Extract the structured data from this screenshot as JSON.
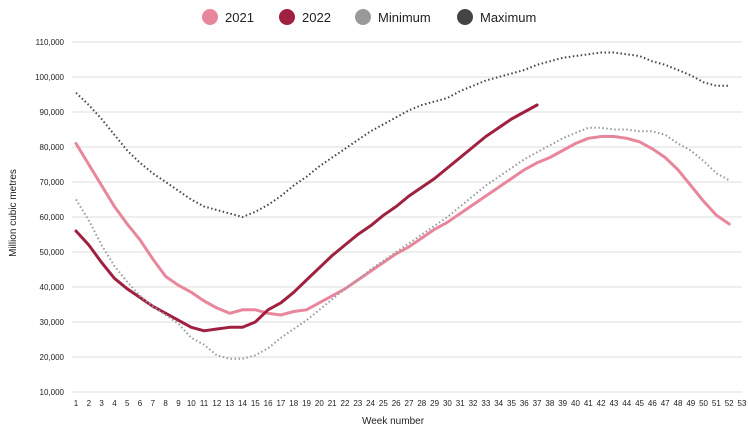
{
  "chart_data": {
    "type": "line",
    "xlabel": "Week number",
    "ylabel": "Million cubic metres",
    "ylim": [
      10000,
      110000
    ],
    "yticks": [
      10000,
      20000,
      30000,
      40000,
      50000,
      60000,
      70000,
      80000,
      90000,
      100000,
      110000
    ],
    "ytick_labels": [
      "10,000",
      "20,000",
      "30,000",
      "40,000",
      "50,000",
      "60,000",
      "70,000",
      "80,000",
      "90,000",
      "100,000",
      "110,000"
    ],
    "x": [
      1,
      2,
      3,
      4,
      5,
      6,
      7,
      8,
      9,
      10,
      11,
      12,
      13,
      14,
      15,
      16,
      17,
      18,
      19,
      20,
      21,
      22,
      23,
      24,
      25,
      26,
      27,
      28,
      29,
      30,
      31,
      32,
      33,
      34,
      35,
      36,
      37,
      38,
      39,
      40,
      41,
      42,
      43,
      44,
      45,
      46,
      47,
      48,
      49,
      50,
      51,
      52,
      53
    ],
    "grid": "horizontal",
    "legend_position": "top",
    "series": [
      {
        "name": "2021",
        "color": "#e8869c",
        "style": "solid",
        "values": [
          81000,
          75000,
          69000,
          63000,
          58000,
          53500,
          48000,
          43000,
          40500,
          38500,
          36000,
          34000,
          32500,
          33500,
          33500,
          32500,
          32000,
          33000,
          33500,
          35500,
          37500,
          39500,
          42000,
          44500,
          47000,
          49500,
          51500,
          54000,
          56500,
          58500,
          61000,
          63500,
          66000,
          68500,
          71000,
          73500,
          75500,
          77000,
          79000,
          81000,
          82500,
          83000,
          83000,
          82500,
          81500,
          79500,
          77000,
          73500,
          69000,
          64500,
          60500,
          58000,
          null
        ]
      },
      {
        "name": "2022",
        "color": "#a0203f",
        "style": "solid",
        "values": [
          56000,
          52000,
          47000,
          42500,
          39500,
          37000,
          34500,
          32500,
          30500,
          28500,
          27500,
          28000,
          28500,
          28500,
          30000,
          33500,
          35500,
          38500,
          42000,
          45500,
          49000,
          52000,
          55000,
          57500,
          60500,
          63000,
          66000,
          68500,
          71000,
          74000,
          77000,
          80000,
          83000,
          85500,
          88000,
          90000,
          92000,
          null,
          null,
          null,
          null,
          null,
          null,
          null,
          null,
          null,
          null,
          null,
          null,
          null,
          null,
          null,
          null
        ]
      },
      {
        "name": "Minimum",
        "color": "#999999",
        "style": "dotted",
        "values": [
          65000,
          59000,
          52000,
          46000,
          41500,
          37500,
          34500,
          32000,
          29500,
          25500,
          23500,
          20500,
          19500,
          19500,
          20500,
          22500,
          25500,
          28000,
          30500,
          33500,
          36500,
          39500,
          42000,
          45000,
          47500,
          50000,
          52500,
          55000,
          57500,
          60000,
          63000,
          66000,
          69000,
          71500,
          74000,
          76500,
          78500,
          80500,
          82500,
          84000,
          85500,
          85500,
          85000,
          85000,
          84500,
          84500,
          83500,
          81000,
          79000,
          76000,
          72500,
          70500,
          null
        ]
      },
      {
        "name": "Maximum",
        "color": "#444444",
        "style": "dotted",
        "values": [
          95500,
          92000,
          88000,
          83500,
          79000,
          75500,
          72500,
          70000,
          67500,
          65000,
          63000,
          62000,
          61000,
          60000,
          61500,
          63500,
          66000,
          69000,
          71500,
          74500,
          77000,
          79500,
          82000,
          84500,
          86500,
          88500,
          90500,
          92000,
          93000,
          94000,
          96000,
          97500,
          99000,
          100000,
          101000,
          102000,
          103500,
          104500,
          105500,
          106000,
          106500,
          107000,
          107000,
          106500,
          106000,
          104500,
          103500,
          102000,
          100500,
          98500,
          97500,
          97500,
          null
        ]
      }
    ]
  }
}
